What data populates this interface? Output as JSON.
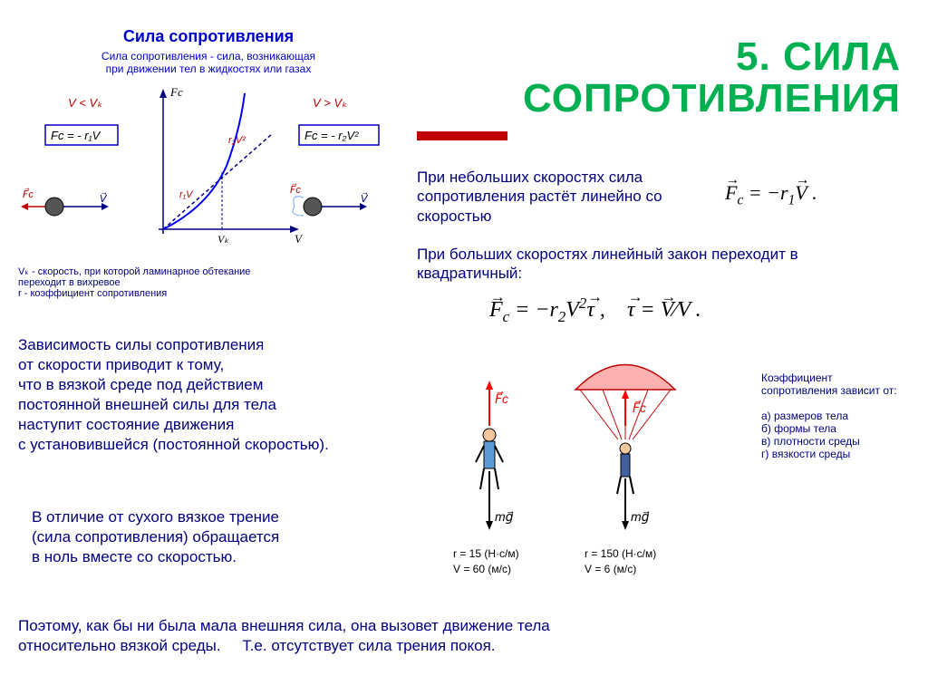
{
  "title_line1": "5. СИЛА",
  "title_line2": "СОПРОТИВЛЕНИЯ",
  "diagram": {
    "title": "Сила сопротивления",
    "subtitle_l1": "Сила сопротивления - сила, возникающая",
    "subtitle_l2": "при движении тел в жидкостях или газах",
    "v_lt": "V < Vₖ",
    "v_gt": "V > Vₖ",
    "formula_low": "Fc = - r₁V",
    "formula_high": "Fc = - r₂V²",
    "note_l1": "Vₖ - скорость, при которой ламинарное обтекание",
    "note_l2": "переходит в вихревое",
    "note_l3": "r - коэффициент сопротивления",
    "axis_fc": "Fc",
    "axis_v": "V",
    "axis_vk": "Vₖ",
    "curve1": "r₁V",
    "curve2": "r₂V²"
  },
  "text1": "При небольших скоростях сила сопротивления растёт линейно со скоростью",
  "formula1_html": "<span class='vec'>F</span><sub>c</sub> = −r<sub>1</sub><span class='vec'>V</span> .",
  "text2": "При больших скоростях линейный закон переходит в квадратичный:",
  "formula2_html": "<span class='vec'>F</span><sub>c</sub> = −r<sub>2</sub>V<sup>2</sup><span class='vec'>τ</span> ,&nbsp;&nbsp;&nbsp; <span class='vec'>τ</span> = <span class='vec'>V</span>⁄V .",
  "block1_l1": "Зависимость силы сопротивления",
  "block1_l2": "от скорости приводит к тому,",
  "block1_l3": "что в вязкой среде под действием",
  "block1_l4": "постоянной внешней силы для тела",
  "block1_l5": "наступит состояние движения",
  "block1_l6": "с установившейся (постоянной скоростью).",
  "block2_l1": "В отличие от сухого вязкое трение",
  "block2_l2": "(сила сопротивления) обращается",
  "block2_l3": "в ноль вместе со скоростью.",
  "bottom_l1": "Поэтому, как бы ни была мала внешняя сила, она вызовет движение  тела",
  "bottom_l2a": "относительно вязкой среды.",
  "bottom_l2b": "Т.е. отсутствует сила трения покоя.",
  "coeff_title": "Коэффициент сопротивления зависит от:",
  "coeff_a": "а) размеров тела",
  "coeff_b": "б) формы тела",
  "coeff_c": "в) плотности среды",
  "coeff_d": "г) вязкости среды",
  "para1_r": "r = 15  (Н·с/м)",
  "para1_v": "V = 60 (м/с)",
  "para2_r": "r = 150  (Н·с/м)",
  "para2_v": "V = 6 (м/с)",
  "fc_label": "F⃗c",
  "mg_label": "mg⃗",
  "colors": {
    "title": "#00b050",
    "text": "#000080",
    "red": "#c00000",
    "blue_curve": "#0000ff",
    "parachute1": "#5b9bd5",
    "parachute2": "#c00000",
    "arrow_up": "#ff0000",
    "arrow_down": "#000000"
  }
}
